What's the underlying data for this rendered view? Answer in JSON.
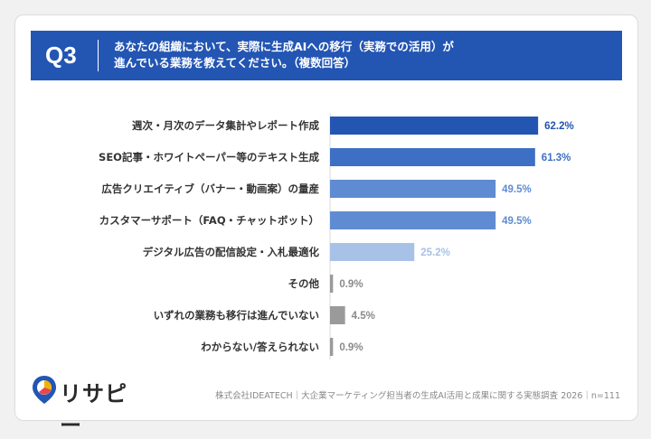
{
  "header": {
    "q_label": "Q3",
    "question_line1": "あなたの組織において、実際に生成AIへの移行（実務での活用）が",
    "question_line2": "進んでいる業務を教えてください。（複数回答）"
  },
  "chart_data": {
    "type": "bar",
    "orientation": "horizontal",
    "categories": [
      "週次・月次のデータ集計やレポート作成",
      "SEO記事・ホワイトペーパー等のテキスト生成",
      "広告クリエイティブ（バナー・動画案）の量産",
      "カスタマーサポート（FAQ・チャットボット）",
      "デジタル広告の配信設定・入札最適化",
      "その他",
      "いずれの業務も移行は進んでいない",
      "わからない/答えられない"
    ],
    "values": [
      62.2,
      61.3,
      49.5,
      49.5,
      25.2,
      0.9,
      4.5,
      0.9
    ],
    "value_labels": [
      "62.2%",
      "61.3%",
      "49.5%",
      "49.5%",
      "25.2%",
      "0.9%",
      "4.5%",
      "0.9%"
    ],
    "bar_colors": [
      "#2355b3",
      "#3d6fc4",
      "#5f8bd2",
      "#5f8bd2",
      "#a8c1e6",
      "#9a9a9a",
      "#9a9a9a",
      "#9a9a9a"
    ],
    "label_colors": [
      "#2355b3",
      "#3d6fc4",
      "#5f8bd2",
      "#5f8bd2",
      "#a8c1e6",
      "#8a8a8a",
      "#8a8a8a",
      "#8a8a8a"
    ],
    "xlim": [
      0,
      100
    ]
  },
  "footer": {
    "logo_text": "リサピー",
    "note": "株式会社IDEATECH｜大企業マーケティング担当者の生成AI活用と成果に関する実態調査 2026｜n=111"
  }
}
